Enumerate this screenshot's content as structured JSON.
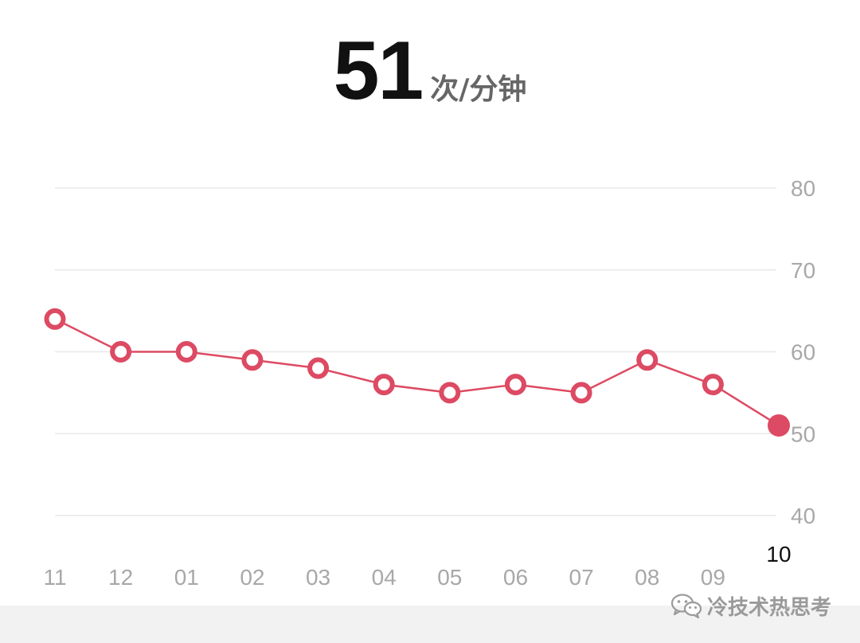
{
  "header": {
    "value": "51",
    "unit": "次/分钟"
  },
  "watermark": {
    "text": "冷技术热思考",
    "icon": "wechat-icon"
  },
  "colors": {
    "accent": "#dd4a63",
    "grid": "#e8e8e8",
    "axis_text": "#a8a8a8",
    "selected_text": "#111111",
    "footer": "#f2f2f2"
  },
  "chart_data": {
    "type": "line",
    "x": [
      "11",
      "12",
      "01",
      "02",
      "03",
      "04",
      "05",
      "06",
      "07",
      "08",
      "09",
      "10"
    ],
    "values": [
      64,
      60,
      60,
      59,
      58,
      56,
      55,
      56,
      55,
      59,
      56,
      51
    ],
    "y_ticks": [
      "80",
      "70",
      "60",
      "50",
      "40"
    ],
    "ylim": [
      40,
      80
    ],
    "y_axis_side": "right",
    "grid": true,
    "selected_index": 11,
    "selected_label": "10"
  }
}
